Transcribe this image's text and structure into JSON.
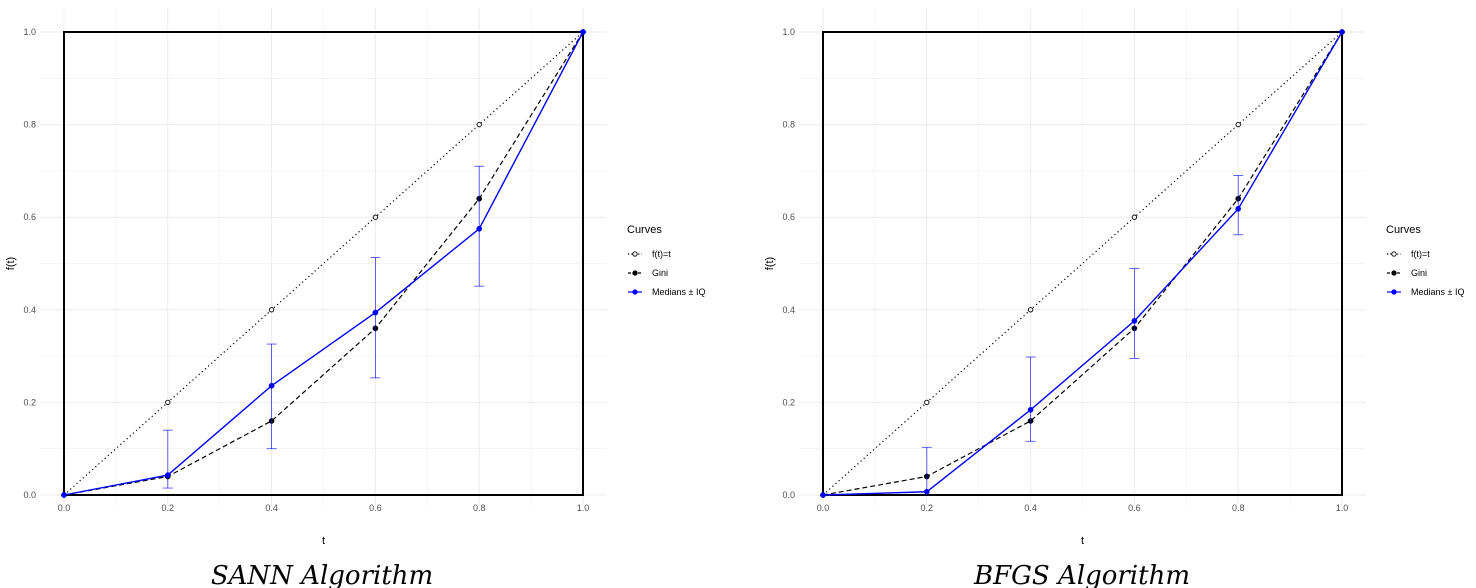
{
  "chart_data": [
    {
      "type": "line",
      "caption": "SANN Algorithm",
      "xlabel": "t",
      "ylabel": "f(t)",
      "xlim": [
        0,
        1
      ],
      "ylim": [
        0,
        1
      ],
      "x_ticks": [
        "0.0",
        "0.2",
        "0.4",
        "0.6",
        "0.8",
        "1.0"
      ],
      "y_ticks": [
        "0.0",
        "0.2",
        "0.4",
        "0.6",
        "0.8",
        "1.0"
      ],
      "grid": true,
      "legend": {
        "title": "Curves",
        "placement": "right",
        "entries": [
          "f(t)=t",
          "Gini",
          "Medians ± IQ"
        ]
      },
      "series": [
        {
          "name": "f(t)=t",
          "style": "dotted",
          "marker": "open-circle",
          "color": "#000000",
          "x": [
            0,
            0.2,
            0.4,
            0.6,
            0.8,
            1.0
          ],
          "y": [
            0,
            0.2,
            0.4,
            0.6,
            0.8,
            1.0
          ]
        },
        {
          "name": "Gini",
          "style": "dashed",
          "marker": "filled-circle",
          "color": "#000000",
          "x": [
            0,
            0.2,
            0.4,
            0.6,
            0.8,
            1.0
          ],
          "y": [
            0,
            0.04,
            0.16,
            0.36,
            0.64,
            1.0
          ]
        },
        {
          "name": "Medians ± IQ",
          "style": "solid",
          "marker": "filled-circle",
          "color": "#0000ff",
          "x": [
            0,
            0.2,
            0.4,
            0.6,
            0.8,
            1.0
          ],
          "y": [
            0,
            0.043,
            0.236,
            0.394,
            0.575,
            1.0
          ],
          "err_low": [
            null,
            0.015,
            0.1,
            0.253,
            0.451,
            null
          ],
          "err_high": [
            null,
            0.14,
            0.326,
            0.513,
            0.71,
            null
          ]
        }
      ]
    },
    {
      "type": "line",
      "caption": "BFGS Algorithm",
      "xlabel": "t",
      "ylabel": "f(t)",
      "xlim": [
        0,
        1
      ],
      "ylim": [
        0,
        1
      ],
      "x_ticks": [
        "0.0",
        "0.2",
        "0.4",
        "0.6",
        "0.8",
        "1.0"
      ],
      "y_ticks": [
        "0.0",
        "0.2",
        "0.4",
        "0.6",
        "0.8",
        "1.0"
      ],
      "grid": true,
      "legend": {
        "title": "Curves",
        "placement": "right",
        "entries": [
          "f(t)=t",
          "Gini",
          "Medians ± IQ"
        ]
      },
      "series": [
        {
          "name": "f(t)=t",
          "style": "dotted",
          "marker": "open-circle",
          "color": "#000000",
          "x": [
            0,
            0.2,
            0.4,
            0.6,
            0.8,
            1.0
          ],
          "y": [
            0,
            0.2,
            0.4,
            0.6,
            0.8,
            1.0
          ]
        },
        {
          "name": "Gini",
          "style": "dashed",
          "marker": "filled-circle",
          "color": "#000000",
          "x": [
            0,
            0.2,
            0.4,
            0.6,
            0.8,
            1.0
          ],
          "y": [
            0,
            0.04,
            0.16,
            0.36,
            0.64,
            1.0
          ]
        },
        {
          "name": "Medians ± IQ",
          "style": "solid",
          "marker": "filled-circle",
          "color": "#0000ff",
          "x": [
            0,
            0.2,
            0.4,
            0.6,
            0.8,
            1.0
          ],
          "y": [
            0,
            0.007,
            0.184,
            0.376,
            0.618,
            1.0
          ],
          "err_low": [
            null,
            null,
            0.116,
            0.295,
            0.562,
            null
          ],
          "err_high": [
            null,
            0.103,
            0.298,
            0.489,
            0.69,
            null
          ]
        }
      ]
    }
  ]
}
